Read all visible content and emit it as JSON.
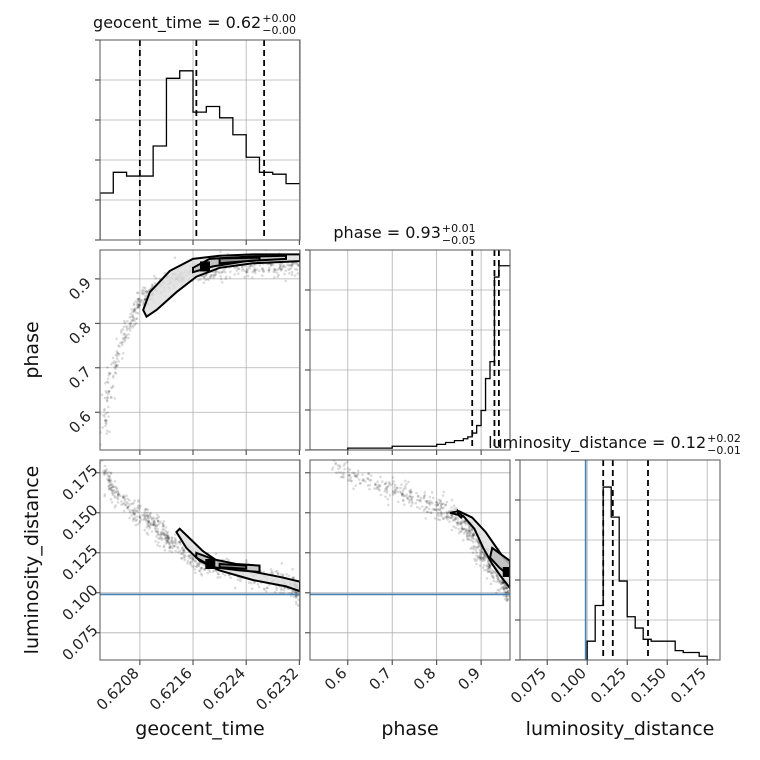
{
  "chart_data": {
    "type": "corner",
    "parameters": [
      "geocent_time",
      "phase",
      "luminosity_distance"
    ],
    "axis_labels": {
      "geocent_time": "geocent_time",
      "phase": "phase",
      "luminosity_distance": "luminosity_distance"
    },
    "grid": true,
    "truth_color": "#4682b4",
    "truths": {
      "luminosity_distance": 0.099
    },
    "ranges": {
      "geocent_time": [
        0.6202,
        0.62321
      ],
      "phase": [
        0.515,
        0.965
      ],
      "luminosity_distance": [
        0.058,
        0.183
      ]
    },
    "ticks": {
      "geocent_time": [
        {
          "v": 0.6208,
          "label": "0.6208"
        },
        {
          "v": 0.6216,
          "label": "0.6216"
        },
        {
          "v": 0.6224,
          "label": "0.6224"
        },
        {
          "v": 0.6232,
          "label": "0.6232"
        }
      ],
      "phase": [
        {
          "v": 0.6,
          "label": "0.6"
        },
        {
          "v": 0.7,
          "label": "0.7"
        },
        {
          "v": 0.8,
          "label": "0.8"
        },
        {
          "v": 0.9,
          "label": "0.9"
        }
      ],
      "luminosity_distance": [
        {
          "v": 0.075,
          "label": "0.075"
        },
        {
          "v": 0.1,
          "label": "0.100"
        },
        {
          "v": 0.125,
          "label": "0.125"
        },
        {
          "v": 0.15,
          "label": "0.150"
        },
        {
          "v": 0.175,
          "label": "0.175"
        }
      ]
    },
    "marginals": {
      "geocent_time": {
        "title": {
          "name": "geocent_time",
          "median": "0.62",
          "plus": "+0.00",
          "minus": "−0.00"
        },
        "quantiles": [
          0.6208,
          0.62165,
          0.62267
        ],
        "edges": [
          0.6202,
          0.6204,
          0.6206,
          0.6208,
          0.621,
          0.6212,
          0.6214,
          0.6216,
          0.6218,
          0.622,
          0.6222,
          0.6224,
          0.6226,
          0.6228,
          0.623,
          0.6232
        ],
        "heights": [
          0.25,
          0.36,
          0.34,
          0.34,
          0.5,
          0.86,
          0.9,
          0.68,
          0.71,
          0.65,
          0.56,
          0.44,
          0.36,
          0.35,
          0.3
        ],
        "ymax": 1.0
      },
      "phase": {
        "title": {
          "name": "phase",
          "median": "0.93",
          "plus": "+0.01",
          "minus": "−0.05"
        },
        "quantiles": [
          0.88,
          0.93,
          0.94
        ],
        "edges": [
          0.515,
          0.6,
          0.7,
          0.8,
          0.82,
          0.84,
          0.86,
          0.87,
          0.88,
          0.89,
          0.9,
          0.91,
          0.92,
          0.93,
          0.94,
          0.95,
          0.965
        ],
        "heights": [
          0.0,
          0.01,
          0.02,
          0.03,
          0.04,
          0.05,
          0.06,
          0.07,
          0.09,
          0.13,
          0.21,
          0.38,
          0.47,
          0.92,
          0.98,
          0.98
        ],
        "ymax": 1.0
      },
      "luminosity_distance": {
        "title": {
          "name": "luminosity_distance",
          "median": "0.12",
          "plus": "+0.02",
          "minus": "−0.01"
        },
        "quantiles": [
          0.11,
          0.116,
          0.138
        ],
        "edges": [
          0.058,
          0.1,
          0.105,
          0.11,
          0.115,
          0.12,
          0.125,
          0.13,
          0.135,
          0.14,
          0.145,
          0.15,
          0.155,
          0.16,
          0.165,
          0.17,
          0.175,
          0.18
        ],
        "heights": [
          0.0,
          0.1,
          0.29,
          0.92,
          0.76,
          0.42,
          0.23,
          0.17,
          0.11,
          0.1,
          0.1,
          0.1,
          0.05,
          0.04,
          0.04,
          0.02,
          0.0
        ],
        "ymax": 1.0
      }
    },
    "scatter_curves": {
      "phase_vs_geocent_time": [
        [
          0.62025,
          0.55
        ],
        [
          0.6203,
          0.62
        ],
        [
          0.6204,
          0.7
        ],
        [
          0.62055,
          0.77
        ],
        [
          0.6207,
          0.82
        ],
        [
          0.62085,
          0.855
        ],
        [
          0.621,
          0.875
        ],
        [
          0.6212,
          0.895
        ],
        [
          0.6214,
          0.905
        ],
        [
          0.6216,
          0.915
        ],
        [
          0.6218,
          0.92
        ],
        [
          0.622,
          0.925
        ],
        [
          0.6224,
          0.928
        ],
        [
          0.6228,
          0.93
        ],
        [
          0.6232,
          0.932
        ]
      ],
      "luminosity_distance_vs_geocent_time": [
        [
          0.62025,
          0.178
        ],
        [
          0.62035,
          0.168
        ],
        [
          0.6205,
          0.159
        ],
        [
          0.6207,
          0.152
        ],
        [
          0.6209,
          0.145
        ],
        [
          0.6211,
          0.138
        ],
        [
          0.6213,
          0.131
        ],
        [
          0.6215,
          0.124
        ],
        [
          0.6217,
          0.119
        ],
        [
          0.622,
          0.115
        ],
        [
          0.6224,
          0.112
        ],
        [
          0.6228,
          0.108
        ],
        [
          0.6231,
          0.105
        ],
        [
          0.6232,
          0.1
        ]
      ],
      "luminosity_distance_vs_phase": [
        [
          0.57,
          0.178
        ],
        [
          0.62,
          0.172
        ],
        [
          0.68,
          0.166
        ],
        [
          0.74,
          0.16
        ],
        [
          0.8,
          0.154
        ],
        [
          0.84,
          0.148
        ],
        [
          0.87,
          0.14
        ],
        [
          0.895,
          0.13
        ],
        [
          0.915,
          0.12
        ],
        [
          0.935,
          0.112
        ],
        [
          0.955,
          0.105
        ],
        [
          0.965,
          0.1
        ]
      ]
    },
    "density_peaks": {
      "phase_vs_geocent_time": [
        0.62178,
        0.928
      ],
      "luminosity_distance_vs_geocent_time": [
        0.62186,
        0.118
      ],
      "luminosity_distance_vs_phase": [
        0.96,
        0.113
      ]
    },
    "contours": {
      "phase_vs_geocent_time": [
        [
          [
            0.62105,
            0.83
          ],
          [
            0.62135,
            0.87
          ],
          [
            0.62165,
            0.905
          ],
          [
            0.622,
            0.925
          ],
          [
            0.6225,
            0.935
          ],
          [
            0.62321,
            0.94
          ],
          [
            0.62321,
            0.955
          ],
          [
            0.6225,
            0.955
          ],
          [
            0.622,
            0.952
          ],
          [
            0.6216,
            0.945
          ],
          [
            0.62125,
            0.918
          ],
          [
            0.62095,
            0.87
          ],
          [
            0.62085,
            0.83
          ],
          [
            0.6209,
            0.815
          ],
          [
            0.62105,
            0.83
          ]
        ],
        [
          [
            0.6216,
            0.915
          ],
          [
            0.6219,
            0.928
          ],
          [
            0.6224,
            0.94
          ],
          [
            0.623,
            0.945
          ],
          [
            0.623,
            0.952
          ],
          [
            0.6224,
            0.95
          ],
          [
            0.62185,
            0.945
          ],
          [
            0.6216,
            0.925
          ],
          [
            0.6216,
            0.915
          ]
        ],
        [
          [
            0.622,
            0.935
          ],
          [
            0.6226,
            0.942
          ],
          [
            0.6226,
            0.948
          ],
          [
            0.622,
            0.946
          ],
          [
            0.622,
            0.935
          ]
        ]
      ],
      "luminosity_distance_vs_geocent_time": [
        [
          [
            0.62135,
            0.138
          ],
          [
            0.6215,
            0.128
          ],
          [
            0.6217,
            0.12
          ],
          [
            0.622,
            0.114
          ],
          [
            0.6225,
            0.108
          ],
          [
            0.623,
            0.104
          ],
          [
            0.62321,
            0.101
          ],
          [
            0.62321,
            0.107
          ],
          [
            0.6229,
            0.11
          ],
          [
            0.6224,
            0.114
          ],
          [
            0.622,
            0.119
          ],
          [
            0.62175,
            0.126
          ],
          [
            0.62155,
            0.134
          ],
          [
            0.6214,
            0.14
          ],
          [
            0.62135,
            0.138
          ]
        ],
        [
          [
            0.62165,
            0.122
          ],
          [
            0.6219,
            0.116
          ],
          [
            0.6223,
            0.114
          ],
          [
            0.6226,
            0.113
          ],
          [
            0.6226,
            0.117
          ],
          [
            0.62225,
            0.118
          ],
          [
            0.6219,
            0.121
          ],
          [
            0.62165,
            0.125
          ],
          [
            0.62165,
            0.122
          ]
        ],
        [
          [
            0.622,
            0.116
          ],
          [
            0.6224,
            0.115
          ],
          [
            0.6224,
            0.117
          ],
          [
            0.622,
            0.118
          ],
          [
            0.622,
            0.116
          ]
        ]
      ],
      "luminosity_distance_vs_phase": [
        [
          [
            0.83,
            0.15
          ],
          [
            0.86,
            0.148
          ],
          [
            0.885,
            0.14
          ],
          [
            0.905,
            0.128
          ],
          [
            0.925,
            0.118
          ],
          [
            0.945,
            0.11
          ],
          [
            0.965,
            0.103
          ],
          [
            0.965,
            0.118
          ],
          [
            0.95,
            0.122
          ],
          [
            0.935,
            0.128
          ],
          [
            0.91,
            0.138
          ],
          [
            0.88,
            0.147
          ],
          [
            0.85,
            0.151
          ],
          [
            0.83,
            0.15
          ]
        ],
        [
          [
            0.92,
            0.122
          ],
          [
            0.94,
            0.116
          ],
          [
            0.965,
            0.11
          ],
          [
            0.965,
            0.12
          ],
          [
            0.945,
            0.124
          ],
          [
            0.925,
            0.128
          ],
          [
            0.92,
            0.122
          ]
        ],
        [
          [
            0.848,
            0.151
          ],
          [
            0.858,
            0.148
          ],
          [
            0.855,
            0.147
          ],
          [
            0.848,
            0.149
          ],
          [
            0.848,
            0.151
          ]
        ]
      ]
    }
  }
}
